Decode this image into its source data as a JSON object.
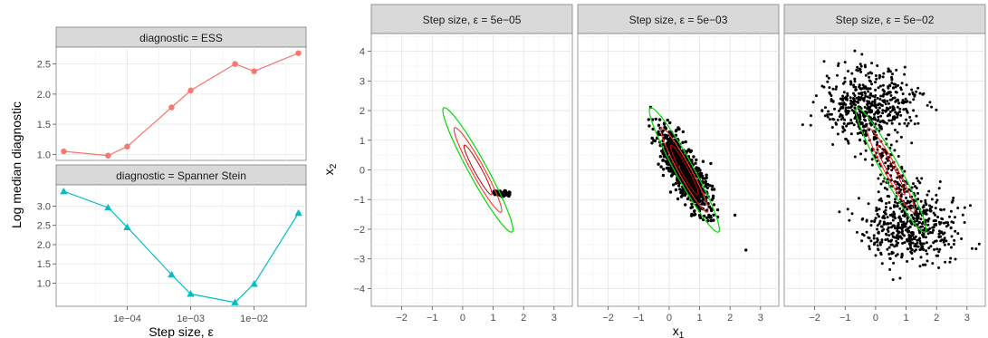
{
  "chart_data": [
    {
      "type": "line",
      "title": "",
      "ylabel": "Log median diagnostic",
      "xlabel": "Step size, ε",
      "x_scale": "log10",
      "x_tick_labels": [
        "1e−04",
        "1e−03",
        "1e−02"
      ],
      "x_tick_values": [
        0.0001,
        0.001,
        0.01
      ],
      "x": [
        1e-05,
        5e-05,
        0.0001,
        0.0005,
        0.001,
        0.005,
        0.01,
        0.05
      ],
      "panels": [
        {
          "strip": "diagnostic = ESS",
          "color": "#f8766d",
          "marker": "circle",
          "values": [
            1.05,
            0.98,
            1.13,
            1.78,
            2.06,
            2.5,
            2.38,
            2.68
          ],
          "y_tick_labels": [
            "1.0",
            "1.5",
            "2.0",
            "2.5"
          ],
          "y_tick_values": [
            1.0,
            1.5,
            2.0,
            2.5
          ],
          "ylim": [
            0.9,
            2.78
          ]
        },
        {
          "strip": "diagnostic = Spanner Stein",
          "color": "#00bfc4",
          "marker": "triangle",
          "values": [
            3.38,
            2.96,
            2.45,
            1.22,
            0.72,
            0.5,
            0.98,
            2.82
          ],
          "y_tick_labels": [
            "1.0",
            "1.5",
            "2.0",
            "2.5",
            "3.0"
          ],
          "y_tick_values": [
            1.0,
            1.5,
            2.0,
            2.5,
            3.0
          ],
          "ylim": [
            0.4,
            3.55
          ]
        }
      ]
    },
    {
      "type": "scatter",
      "title": "",
      "xlabel": "x1",
      "ylabel": "x2",
      "xlim": [
        -3.0,
        3.6
      ],
      "ylim": [
        -4.6,
        4.6
      ],
      "x_ticks": [
        -2,
        -1,
        0,
        1,
        2,
        3
      ],
      "y_ticks": [
        -4,
        -3,
        -2,
        -1,
        0,
        1,
        2,
        3,
        4
      ],
      "x_tick_labels": [
        "−2",
        "−1",
        "0",
        "1",
        "2",
        "3"
      ],
      "y_tick_labels": [
        "−4",
        "−3",
        "−2",
        "−1",
        "0",
        "1",
        "2",
        "3",
        "4"
      ],
      "contour_colors": [
        "#00dd00",
        "#ff3333",
        "#cc0000"
      ],
      "contour_levels": [
        {
          "color": "#00dd00",
          "width": 1.2,
          "scale": 2.5
        },
        {
          "color": "#ff3333",
          "width": 1.1,
          "scale": 1.7
        },
        {
          "color": "#cc0000",
          "width": 1.0,
          "scale": 1.0
        }
      ],
      "contour_center": [
        0.5,
        0.0
      ],
      "contour_major_axis": [
        -0.47,
        0.88
      ],
      "contour_sd": [
        0.95,
        0.12
      ],
      "panels": [
        {
          "strip": "Step size, ε = 5e−05",
          "sample": "trace",
          "center": [
            1.3,
            -0.75
          ],
          "n": 60
        },
        {
          "strip": "Step size, ε = 5e−03",
          "sample": "posterior",
          "center": [
            0.5,
            -0.05
          ],
          "sd_major": 1.1,
          "sd_minor": 0.22,
          "n": 900
        },
        {
          "strip": "Step size, ε = 5e−02",
          "sample": "bimodal",
          "n_per_mode": 500
        }
      ]
    }
  ]
}
